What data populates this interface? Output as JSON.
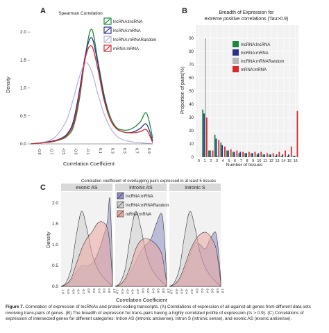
{
  "panel_a": {
    "letter": "A",
    "title": "Spearman Correlation",
    "ylabel": "Density",
    "xlabel": "Correlation Coefficient",
    "yticks": [
      "0.0",
      "0.5",
      "1.0",
      "1.5",
      "2.0"
    ],
    "xticks": [
      "-0.9",
      "-0.7",
      "-0.5",
      "-0.3",
      "-0.1",
      "0.1",
      "0.3",
      "0.5",
      "0.7",
      "0.9"
    ],
    "legend": [
      {
        "label": "lncRNA:lncRNA",
        "color": "#1a8a3a"
      },
      {
        "label": "lncRNA:mRNA",
        "color": "#2b2f8f"
      },
      {
        "label": "lncRNA:mRNARandom",
        "color": "#b9b4d8"
      },
      {
        "label": "mRNA:mRNA",
        "color": "#d62a2a"
      }
    ]
  },
  "panel_b": {
    "letter": "B",
    "title_line1": "Breadth of Expression for",
    "title_line2": "extreme positive correlations (Tau>0.9)",
    "ylabel": "Proportion of pairs(%)",
    "xlabel": "Number of tissues",
    "yticks": [
      "0",
      "10",
      "20",
      "30",
      "40",
      "50",
      "60",
      "70",
      "80",
      "90"
    ],
    "xticks": [
      "0",
      "1",
      "2",
      "3",
      "4",
      "5",
      "6",
      "7",
      "8",
      "9",
      "10",
      "11",
      "12",
      "13",
      "14",
      "15",
      "16"
    ],
    "legend": [
      {
        "label": "lncRNA:lncRNA",
        "color": "#1a8a3a"
      },
      {
        "label": "lncRNA:mRNA",
        "color": "#2b2f8f"
      },
      {
        "label": "lncRNA:mRNARandom",
        "color": "#b5b5b5"
      },
      {
        "label": "mRNA:mRNA",
        "color": "#d62a2a"
      }
    ]
  },
  "panel_c": {
    "letter": "C",
    "title": "Correlation coefficient of overlapping pairs expressed in at least 5 tissues",
    "facets": [
      "exonic AS",
      "intronic AS",
      "intronic S"
    ],
    "ylabel": "Density",
    "xlabel": "Correlation Coefficient",
    "yticks": [
      "0.0",
      "0.5",
      "1.0",
      "1.5",
      "2.0"
    ],
    "legend": [
      {
        "label": "lncRNA:mRNA",
        "color": "#8f8fc6"
      },
      {
        "label": "lncRNA:mRNARandom",
        "color": "#cfcfcf"
      },
      {
        "label": "mRNA:mRNA",
        "color": "#e9a6a0"
      }
    ]
  },
  "caption": {
    "label": "Figure 7.",
    "text": "Correlation of expression of lncRNAs and protein-coding transcripts. (A) Correlations of expression of all-against-all genes from different data sets involving trans-pairs of genes. (B) The breadth of expression for trans-pairs having a highly correlated profile of expression (τs > 0.9). (C) Correlations of expression of intersected genes for different categories: Intron AS (intronic antisense), Intron S (intronic sense), and exonic AS (exonic antisense)."
  },
  "chart_data": [
    {
      "type": "line",
      "title": "Spearman Correlation",
      "xlabel": "Correlation Coefficient",
      "ylabel": "Density",
      "xlim": [
        -1,
        1
      ],
      "ylim": [
        0,
        2.2
      ],
      "x": [
        -1.0,
        -0.9,
        -0.8,
        -0.7,
        -0.6,
        -0.5,
        -0.4,
        -0.3,
        -0.2,
        -0.1,
        0.0,
        0.1,
        0.2,
        0.3,
        0.4,
        0.5,
        0.6,
        0.7,
        0.8,
        0.9,
        1.0
      ],
      "series": [
        {
          "name": "lncRNA:lncRNA",
          "color": "#1a8a3a",
          "values": [
            0,
            0.01,
            0.02,
            0.03,
            0.05,
            0.08,
            0.14,
            0.3,
            0.8,
            1.6,
            2.05,
            1.5,
            0.9,
            0.5,
            0.3,
            0.25,
            0.25,
            0.3,
            0.4,
            0.55,
            0.1
          ]
        },
        {
          "name": "lncRNA:mRNA",
          "color": "#2b2f8f",
          "values": [
            0,
            0.01,
            0.02,
            0.04,
            0.06,
            0.1,
            0.18,
            0.4,
            0.95,
            1.6,
            1.9,
            1.45,
            0.85,
            0.45,
            0.28,
            0.22,
            0.2,
            0.22,
            0.28,
            0.35,
            0.05
          ]
        },
        {
          "name": "lncRNA:mRNARandom",
          "color": "#b9b4d8",
          "values": [
            0,
            0.01,
            0.03,
            0.06,
            0.12,
            0.25,
            0.45,
            0.8,
            1.2,
            1.45,
            1.3,
            0.9,
            0.55,
            0.3,
            0.15,
            0.08,
            0.05,
            0.03,
            0.02,
            0.01,
            0
          ]
        },
        {
          "name": "mRNA:mRNA",
          "color": "#d62a2a",
          "values": [
            0,
            0.01,
            0.02,
            0.03,
            0.05,
            0.09,
            0.16,
            0.35,
            0.85,
            1.55,
            1.75,
            1.35,
            0.8,
            0.45,
            0.28,
            0.22,
            0.2,
            0.2,
            0.22,
            0.25,
            0.02
          ]
        }
      ]
    },
    {
      "type": "bar",
      "title": "Breadth of Expression for extreme positive correlations (Tau>0.9)",
      "xlabel": "Number of tissues",
      "ylabel": "Proportion of pairs(%)",
      "ylim": [
        0,
        100
      ],
      "categories": [
        "1",
        "2",
        "3",
        "4",
        "5",
        "6",
        "7",
        "8",
        "9",
        "10",
        "11",
        "12",
        "13",
        "14",
        "15",
        "16"
      ],
      "series": [
        {
          "name": "lncRNA:lncRNA",
          "color": "#1a8a3a",
          "values": [
            36,
            5,
            17,
            11,
            5,
            4,
            3,
            3,
            3,
            2,
            2,
            2,
            1,
            1,
            1,
            1
          ]
        },
        {
          "name": "lncRNA:mRNA",
          "color": "#2b2f8f",
          "values": [
            33,
            5,
            14,
            9,
            5,
            4,
            4,
            3,
            3,
            3,
            2,
            2,
            2,
            2,
            2,
            1
          ]
        },
        {
          "name": "lncRNA:mRNARandom",
          "color": "#b5b5b5",
          "values": [
            90,
            1,
            1,
            0,
            0,
            0,
            0,
            0,
            0,
            0,
            0,
            0,
            0,
            0,
            0,
            0
          ]
        },
        {
          "name": "mRNA:mRNA",
          "color": "#d62a2a",
          "values": [
            30,
            5,
            13,
            8,
            6,
            5,
            4,
            4,
            4,
            4,
            3,
            3,
            4,
            5,
            8,
            35
          ]
        }
      ]
    },
    {
      "type": "area",
      "title": "Correlation coefficient of overlapping pairs expressed in at least 5 tissues",
      "xlabel": "Correlation Coefficient",
      "ylabel": "Density",
      "xlim": [
        -1,
        1
      ],
      "ylim": [
        0,
        2.2
      ],
      "x": [
        -1.0,
        -0.8,
        -0.6,
        -0.4,
        -0.2,
        0.0,
        0.2,
        0.4,
        0.6,
        0.8,
        0.9,
        1.0
      ],
      "facets": [
        {
          "name": "exonic AS",
          "series": [
            {
              "name": "lncRNA:mRNA",
              "values": [
                0,
                0.05,
                0.15,
                0.35,
                0.5,
                0.5,
                0.55,
                0.75,
                1.1,
                1.55,
                2.1,
                0.6
              ]
            },
            {
              "name": "lncRNA:mRNARandom",
              "values": [
                0,
                0.1,
                0.45,
                1.25,
                1.8,
                1.4,
                0.8,
                0.45,
                0.25,
                0.12,
                0.06,
                0
              ]
            },
            {
              "name": "mRNA:mRNA",
              "values": [
                0,
                0.05,
                0.2,
                0.55,
                0.9,
                1.15,
                1.3,
                1.5,
                1.55,
                1.4,
                1.0,
                0.2
              ]
            }
          ]
        },
        {
          "name": "intronic AS",
          "series": [
            {
              "name": "lncRNA:mRNA",
              "values": [
                0,
                0.05,
                0.15,
                0.35,
                0.6,
                0.85,
                1.0,
                1.15,
                1.5,
                1.75,
                1.3,
                0.3
              ]
            },
            {
              "name": "lncRNA:mRNARandom",
              "values": [
                0,
                0.1,
                0.45,
                1.25,
                1.8,
                1.4,
                0.8,
                0.45,
                0.25,
                0.12,
                0.06,
                0
              ]
            },
            {
              "name": "mRNA:mRNA",
              "values": [
                0,
                0.05,
                0.2,
                0.5,
                0.9,
                1.1,
                1.15,
                1.1,
                1.0,
                0.8,
                0.5,
                0.1
              ]
            }
          ]
        },
        {
          "name": "intronic S",
          "series": [
            {
              "name": "lncRNA:mRNA",
              "values": [
                0,
                0.05,
                0.15,
                0.4,
                0.75,
                1.05,
                1.0,
                0.9,
                1.15,
                1.3,
                0.9,
                0.2
              ]
            },
            {
              "name": "lncRNA:mRNARandom",
              "values": [
                0,
                0.1,
                0.45,
                1.25,
                1.8,
                1.4,
                0.8,
                0.45,
                0.25,
                0.12,
                0.06,
                0
              ]
            },
            {
              "name": "mRNA:mRNA",
              "values": [
                0,
                0.05,
                0.2,
                0.5,
                0.85,
                1.1,
                1.25,
                1.3,
                1.2,
                0.95,
                0.6,
                0.1
              ]
            }
          ]
        }
      ]
    }
  ]
}
